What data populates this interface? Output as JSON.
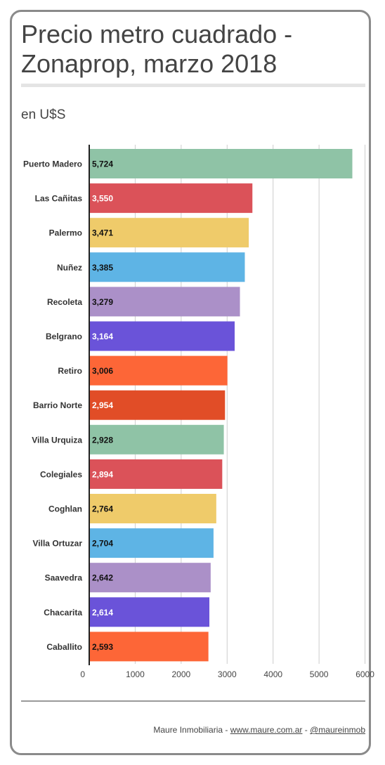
{
  "title": "Precio metro cuadrado - Zonaprop, marzo 2018",
  "subtitle": "en U$S",
  "footer": {
    "author": "Maure Inmobiliaria",
    "sep1": " - ",
    "website": "www.maure.com.ar",
    "sep2": " - ",
    "handle": "@maureinmob"
  },
  "chart_data": {
    "type": "bar",
    "orientation": "horizontal",
    "title": "Precio metro cuadrado - Zonaprop, marzo 2018",
    "subtitle": "en U$S",
    "xlabel": "",
    "ylabel": "",
    "xlim": [
      0,
      6300
    ],
    "x_ticks": [
      0,
      1000,
      2000,
      3000,
      4000,
      5000,
      6000
    ],
    "grid": true,
    "categories": [
      "Puerto Madero",
      "Las Cañitas",
      "Palermo",
      "Nuñez",
      "Recoleta",
      "Belgrano",
      "Retiro",
      "Barrio Norte",
      "Villa Urquiza",
      "Colegiales",
      "Coghlan",
      "Villa Ortuzar",
      "Saavedra",
      "Chacarita",
      "Caballito"
    ],
    "values": [
      5724,
      3550,
      3471,
      3385,
      3279,
      3164,
      3006,
      2954,
      2928,
      2894,
      2764,
      2704,
      2642,
      2614,
      2593
    ],
    "value_labels": [
      "5,724",
      "3,550",
      "3,471",
      "3,385",
      "3,279",
      "3,164",
      "3,006",
      "2,954",
      "2,928",
      "2,894",
      "2,764",
      "2,704",
      "2,642",
      "2,614",
      "2,593"
    ],
    "colors": [
      "#8fc3a6",
      "#db5259",
      "#efcb6a",
      "#5eb4e5",
      "#ab90c8",
      "#6a53d9",
      "#fd6637",
      "#e14d27",
      "#8fc3a6",
      "#db5259",
      "#efcb6a",
      "#5eb4e5",
      "#ab90c8",
      "#6a53d9",
      "#fd6637"
    ],
    "label_colors": [
      "#111111",
      "#ffffff",
      "#111111",
      "#111111",
      "#111111",
      "#ffffff",
      "#111111",
      "#ffffff",
      "#111111",
      "#ffffff",
      "#111111",
      "#111111",
      "#111111",
      "#ffffff",
      "#111111"
    ],
    "gridline_color": "#cccccc",
    "axis_color": "#222222"
  }
}
